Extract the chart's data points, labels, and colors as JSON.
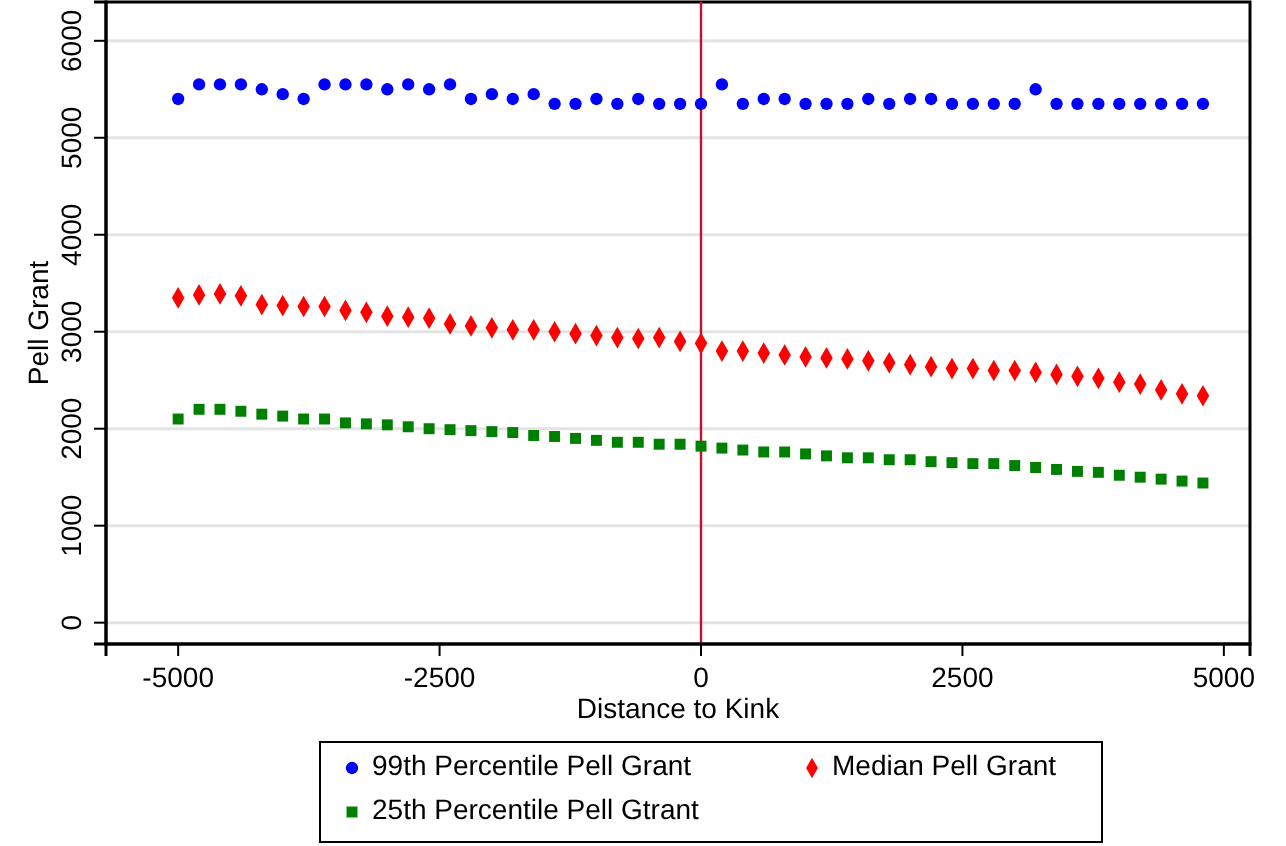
{
  "chart_data": {
    "type": "scatter",
    "xlabel": "Distance to Kink",
    "ylabel": "Pell Grant",
    "x": [
      -5000,
      -4800,
      -4600,
      -4400,
      -4200,
      -4000,
      -3800,
      -3600,
      -3400,
      -3200,
      -3000,
      -2800,
      -2600,
      -2400,
      -2200,
      -2000,
      -1800,
      -1600,
      -1400,
      -1200,
      -1000,
      -800,
      -600,
      -400,
      -200,
      0,
      200,
      400,
      600,
      800,
      1000,
      1200,
      1400,
      1600,
      1800,
      2000,
      2200,
      2400,
      2600,
      2800,
      3000,
      3200,
      3400,
      3600,
      3800,
      4000,
      4200,
      4400,
      4600,
      4800
    ],
    "xlim": [
      -5690,
      5250
    ],
    "ylim": [
      -220,
      6400
    ],
    "xticks": [
      -5000,
      -2500,
      0,
      2500,
      5000
    ],
    "yticks": [
      0,
      1000,
      2000,
      3000,
      4000,
      5000,
      6000
    ],
    "grid": "y",
    "legend": "bottom",
    "ref_lines": [
      {
        "axis": "x",
        "value": 0,
        "color": "#c8102e"
      }
    ],
    "series": [
      {
        "name": "99th Percentile Pell Grant",
        "color": "#0000ff",
        "marker": "circle",
        "values": [
          5400,
          5550,
          5550,
          5550,
          5500,
          5450,
          5400,
          5550,
          5550,
          5550,
          5500,
          5550,
          5500,
          5550,
          5400,
          5450,
          5400,
          5450,
          5350,
          5350,
          5400,
          5350,
          5400,
          5350,
          5350,
          5350,
          5550,
          5350,
          5400,
          5400,
          5350,
          5350,
          5350,
          5400,
          5350,
          5400,
          5400,
          5350,
          5350,
          5350,
          5350,
          5500,
          5350,
          5350,
          5350,
          5350,
          5350,
          5350,
          5350,
          5350
        ]
      },
      {
        "name": "Median Pell Grant",
        "color": "#ff0000",
        "marker": "diamond",
        "values": [
          3350,
          3380,
          3390,
          3370,
          3280,
          3270,
          3260,
          3260,
          3220,
          3200,
          3160,
          3150,
          3140,
          3080,
          3060,
          3040,
          3020,
          3020,
          3000,
          2980,
          2960,
          2940,
          2930,
          2940,
          2900,
          2880,
          2800,
          2800,
          2780,
          2760,
          2740,
          2730,
          2720,
          2700,
          2680,
          2660,
          2640,
          2620,
          2620,
          2600,
          2600,
          2580,
          2560,
          2540,
          2520,
          2480,
          2460,
          2400,
          2360,
          2340
        ]
      },
      {
        "name": "25th Percentile Pell Gtrant",
        "color": "#008000",
        "marker": "square",
        "values": [
          2100,
          2200,
          2200,
          2180,
          2150,
          2130,
          2100,
          2100,
          2060,
          2050,
          2040,
          2020,
          2000,
          1990,
          1980,
          1970,
          1960,
          1930,
          1920,
          1900,
          1880,
          1860,
          1860,
          1840,
          1840,
          1820,
          1800,
          1780,
          1760,
          1760,
          1740,
          1720,
          1700,
          1700,
          1680,
          1680,
          1660,
          1650,
          1640,
          1640,
          1620,
          1600,
          1580,
          1560,
          1550,
          1520,
          1500,
          1480,
          1460,
          1440
        ]
      }
    ]
  }
}
